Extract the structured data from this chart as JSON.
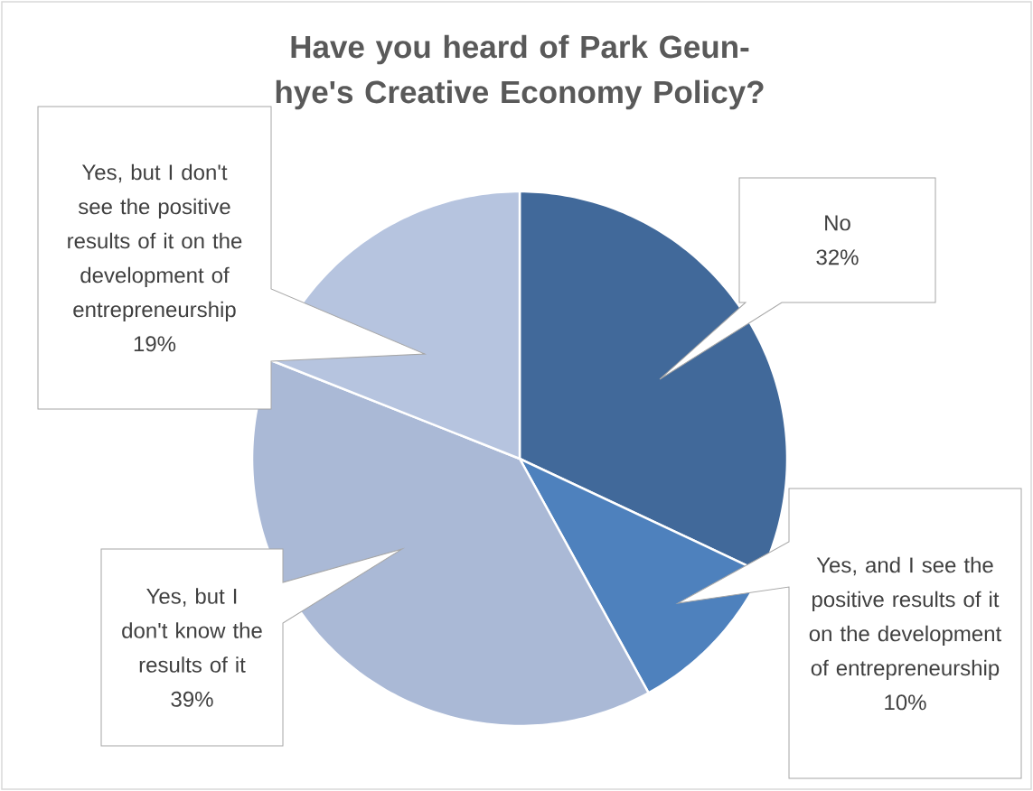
{
  "chart_data": {
    "type": "pie",
    "title": "Have you heard of Park Geun-hye's Creative Economy Policy?",
    "categories": [
      "No",
      "Yes, and I see the positive results of it on the development of entrepreneurship",
      "Yes, but I don't know the results of it",
      "Yes, but I don't see the positive results of it on the development of entrepreneurship"
    ],
    "values": [
      32,
      10,
      39,
      19
    ],
    "value_labels": [
      "32%",
      "10%",
      "39%",
      "19%"
    ],
    "colors": [
      "#41699a",
      "#4e81bd",
      "#aab9d6",
      "#b6c4df"
    ]
  }
}
